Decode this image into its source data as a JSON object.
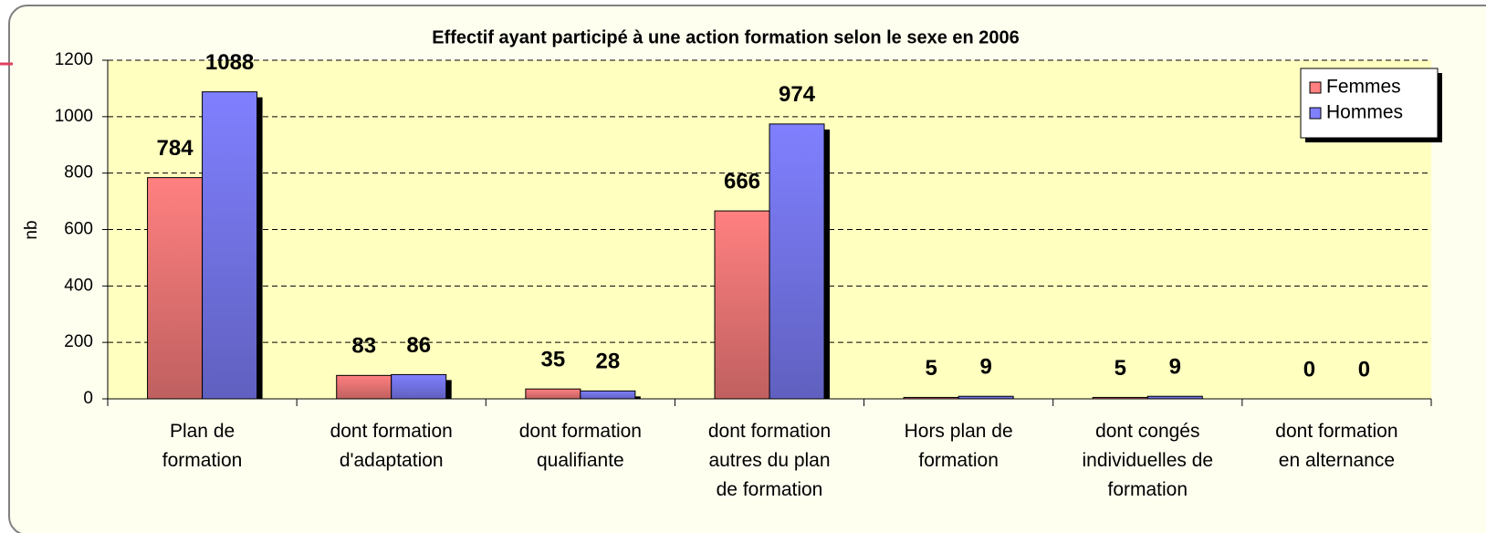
{
  "chart_data": {
    "type": "bar",
    "title": "Effectif ayant participé à une action formation selon le sexe en 2006",
    "ylabel": "nb",
    "categories": [
      "Plan de formation",
      "dont formation d'adaptation",
      "dont formation qualifiante",
      "dont formation autres du plan de formation",
      "Hors plan de formation",
      "dont congés individuelles de formation",
      "dont formation en alternance"
    ],
    "series": [
      {
        "name": "Femmes",
        "color": "#ff8080",
        "values": [
          784,
          83,
          35,
          666,
          5,
          5,
          0
        ]
      },
      {
        "name": "Hommes",
        "color": "#8080ff",
        "values": [
          1088,
          86,
          28,
          974,
          9,
          9,
          0
        ]
      }
    ],
    "ylim": [
      0,
      1200
    ],
    "yticks": [
      0,
      200,
      400,
      600,
      800,
      1000,
      1200
    ],
    "grid": true,
    "legend": "top-right"
  }
}
